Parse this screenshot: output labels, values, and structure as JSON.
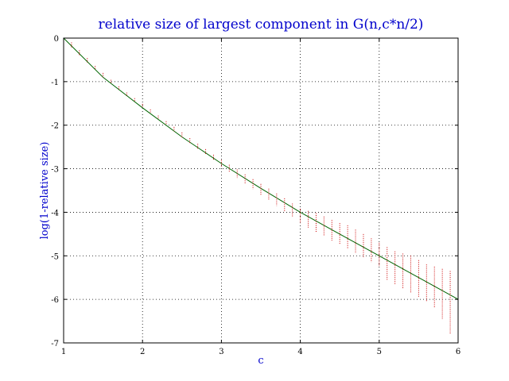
{
  "chart_data": {
    "type": "line",
    "title": "relative size of largest component in G(n,c*n/2)",
    "xlabel": "c",
    "ylabel": "log(1-relative size)",
    "xlim": [
      1,
      6
    ],
    "ylim": [
      -7,
      0
    ],
    "x_ticks": [
      1,
      2,
      3,
      4,
      5,
      6
    ],
    "y_ticks": [
      0,
      -1,
      -2,
      -3,
      -4,
      -5,
      -6,
      -7
    ],
    "x_tick_labels": [
      "1",
      "2",
      "3",
      "4",
      "5",
      "6"
    ],
    "y_tick_labels": [
      "0",
      "-1",
      "-2",
      "-3",
      "-4",
      "-5",
      "-6",
      "-7"
    ],
    "grid": true,
    "series": [
      {
        "kind": "line",
        "color": "#006400",
        "x": [
          1.0,
          1.5,
          2.0,
          2.5,
          3.0,
          3.5,
          4.0,
          4.5,
          5.0,
          5.5,
          6.0
        ],
        "y": [
          0.0,
          -0.9,
          -1.6,
          -2.27,
          -2.88,
          -3.45,
          -4.0,
          -4.5,
          -5.0,
          -5.5,
          -6.0
        ]
      },
      {
        "kind": "errorbar",
        "color": "#cc0000",
        "x": [
          1.1,
          1.2,
          1.3,
          1.4,
          1.5,
          1.6,
          1.7,
          1.8,
          1.9,
          2.0,
          2.1,
          2.2,
          2.3,
          2.4,
          2.5,
          2.6,
          2.7,
          2.8,
          2.9,
          3.0,
          3.1,
          3.2,
          3.3,
          3.4,
          3.5,
          3.6,
          3.7,
          3.8,
          3.9,
          4.0,
          4.1,
          4.2,
          4.3,
          4.4,
          4.5,
          4.6,
          4.7,
          4.8,
          4.9,
          5.0,
          5.1,
          5.2,
          5.3,
          5.4,
          5.5,
          5.6,
          5.7,
          5.8,
          5.9
        ],
        "y_low": [
          -0.22,
          -0.39,
          -0.56,
          -0.73,
          -0.9,
          -1.05,
          -1.2,
          -1.33,
          -1.46,
          -1.59,
          -1.73,
          -1.87,
          -2.0,
          -2.14,
          -2.28,
          -2.42,
          -2.55,
          -2.68,
          -2.81,
          -2.95,
          -3.08,
          -3.21,
          -3.34,
          -3.47,
          -3.6,
          -3.72,
          -3.85,
          -3.98,
          -4.12,
          -4.25,
          -4.35,
          -4.45,
          -4.55,
          -4.65,
          -4.75,
          -4.85,
          -4.95,
          -5.05,
          -5.15,
          -5.25,
          -5.55,
          -5.65,
          -5.75,
          -5.85,
          -5.95,
          -6.05,
          -6.2,
          -6.45,
          -6.8
        ],
        "y_high": [
          -0.1,
          -0.28,
          -0.46,
          -0.64,
          -0.8,
          -0.96,
          -1.11,
          -1.25,
          -1.38,
          -1.51,
          -1.64,
          -1.78,
          -1.91,
          -2.04,
          -2.17,
          -2.3,
          -2.43,
          -2.55,
          -2.68,
          -2.8,
          -2.91,
          -3.02,
          -3.13,
          -3.24,
          -3.35,
          -3.46,
          -3.57,
          -3.68,
          -3.8,
          -3.92,
          -3.97,
          -4.02,
          -4.1,
          -4.18,
          -4.25,
          -4.3,
          -4.4,
          -4.5,
          -4.6,
          -4.7,
          -4.8,
          -4.9,
          -4.95,
          -5.0,
          -5.1,
          -5.2,
          -5.25,
          -5.3,
          -5.35
        ]
      }
    ]
  }
}
